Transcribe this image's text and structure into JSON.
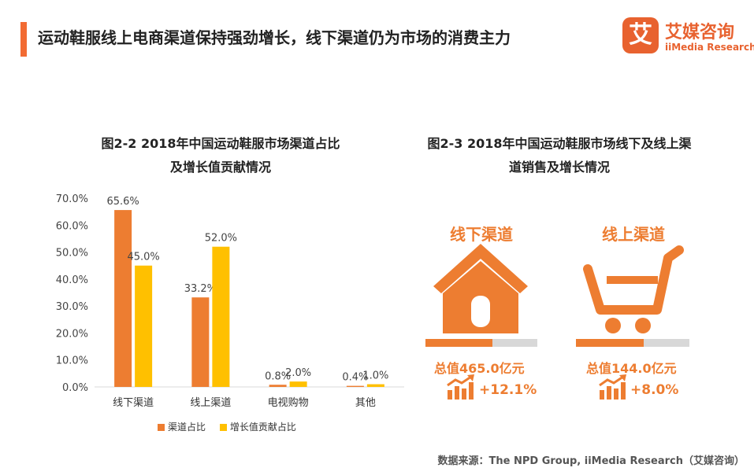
{
  "header": {
    "title": "运动鞋服线上电商渠道保持强劲增长，线下渠道仍为市场的消费主力",
    "accent_color": "#F26B33"
  },
  "logo": {
    "mark": "艾",
    "name_cn": "艾媒咨询",
    "name_en": "iiMedia Research",
    "color": "#E8622F"
  },
  "colors": {
    "orange": "#ED7D31",
    "yellow": "#FFC000",
    "grey": "#D8D8D8"
  },
  "chart_data": {
    "type": "bar",
    "title": "图2-2 2018年中国运动鞋服市场渠道占比及增长值贡献情况",
    "title_lines": [
      "图2-2 2018年中国运动鞋服市场渠道占比",
      "及增长值贡献情况"
    ],
    "categories": [
      "线下渠道",
      "线上渠道",
      "电视购物",
      "其他"
    ],
    "series": [
      {
        "name": "渠道占比",
        "values": [
          65.6,
          33.2,
          0.8,
          0.4
        ],
        "labels": [
          "65.6%",
          "33.2%",
          "0.8%",
          "0.4%"
        ]
      },
      {
        "name": "增长值贡献占比",
        "values": [
          45.0,
          52.0,
          2.0,
          1.0
        ],
        "labels": [
          "45.0%",
          "52.0%",
          "2.0%",
          "1.0%"
        ]
      }
    ],
    "y_ticks": [
      "0.0%",
      "10.0%",
      "20.0%",
      "30.0%",
      "40.0%",
      "50.0%",
      "60.0%",
      "70.0%"
    ],
    "ylim": [
      0,
      70
    ],
    "xlabel": "",
    "ylabel": "",
    "grid": false,
    "legend": "bottom"
  },
  "figure2": {
    "title_lines": [
      "图2-3 2018年中国运动鞋服市场线下及线上渠",
      "道销售及增长情况"
    ],
    "offline": {
      "label": "线下渠道",
      "icon": "house-icon",
      "total": "总值465.0亿元",
      "growth": "+12.1%",
      "share": 0.6
    },
    "online": {
      "label": "线上渠道",
      "icon": "shopping-cart-icon",
      "total": "总值144.0亿元",
      "growth": "+8.0%",
      "share": 0.6
    }
  },
  "source": "数据来源：The NPD Group, iiMedia Research（艾媒咨询）"
}
